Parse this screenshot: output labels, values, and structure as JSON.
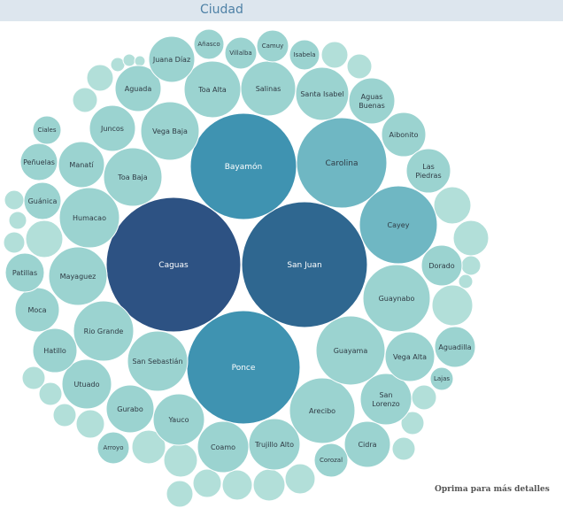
{
  "header": {
    "title": "Ciudad"
  },
  "footer": {
    "hint": "Oprima para más detalles"
  },
  "colors": {
    "header_bg": "#dde6ee",
    "header_text": "#4e81a6",
    "scale": [
      "#b2dfd9",
      "#9bd3d0",
      "#6fb7c3",
      "#3f93b1",
      "#2f6790",
      "#2d5283"
    ]
  },
  "chart_data": {
    "type": "bubble",
    "title": "Ciudad",
    "series": [
      {
        "name": "Ciudad",
        "points": [
          {
            "label": "Caguas",
            "size": 100
          },
          {
            "label": "San Juan",
            "size": 88
          },
          {
            "label": "Bayamón",
            "size": 63
          },
          {
            "label": "Ponce",
            "size": 60
          },
          {
            "label": "Carolina",
            "size": 47
          },
          {
            "label": "Cayey",
            "size": 33
          },
          {
            "label": "Arecibo",
            "size": 24
          },
          {
            "label": "Guayama",
            "size": 24
          },
          {
            "label": "Guaynabo",
            "size": 24
          },
          {
            "label": "Humacao",
            "size": 20
          },
          {
            "label": "San Sebastián",
            "size": 20
          },
          {
            "label": "Rio Grande",
            "size": 20
          },
          {
            "label": "Mayaguez",
            "size": 19
          },
          {
            "label": "Trujillo Alto",
            "size": 15
          },
          {
            "label": "Coamo",
            "size": 14
          },
          {
            "label": "Yauco",
            "size": 14
          },
          {
            "label": "San Lorenzo",
            "size": 14
          },
          {
            "label": "Toa Baja",
            "size": 19
          },
          {
            "label": "Vega Baja",
            "size": 19
          },
          {
            "label": "Toa Alta",
            "size": 18
          },
          {
            "label": "Salinas",
            "size": 16
          },
          {
            "label": "Santa Isabel",
            "size": 16
          },
          {
            "label": "Cidra",
            "size": 12
          },
          {
            "label": "Gurabo",
            "size": 13
          },
          {
            "label": "Utuado",
            "size": 14
          },
          {
            "label": "Vega Alta",
            "size": 14
          },
          {
            "label": "Juncos",
            "size": 12
          },
          {
            "label": "Aguada",
            "size": 12
          },
          {
            "label": "Juana Díaz",
            "size": 11
          },
          {
            "label": "Aguas Buenas",
            "size": 11
          },
          {
            "label": "Aibonito",
            "size": 11
          },
          {
            "label": "Las Piedras",
            "size": 11
          },
          {
            "label": "Manatí",
            "size": 11
          },
          {
            "label": "Moca",
            "size": 11
          },
          {
            "label": "Hatillo",
            "size": 10
          },
          {
            "label": "Dorado",
            "size": 9
          },
          {
            "label": "Aguadilla",
            "size": 9
          },
          {
            "label": "Patillas",
            "size": 8
          },
          {
            "label": "Guánica",
            "size": 8
          },
          {
            "label": "Peñuelas",
            "size": 8
          },
          {
            "label": "Villalba",
            "size": 6
          },
          {
            "label": "Camuy",
            "size": 6
          },
          {
            "label": "Isabela",
            "size": 6
          },
          {
            "label": "Añasco",
            "size": 6
          },
          {
            "label": "Corozal",
            "size": 6
          },
          {
            "label": "Arroyo",
            "size": 6
          },
          {
            "label": "Ciales",
            "size": 5
          },
          {
            "label": "Lajas",
            "size": 3
          }
        ]
      }
    ]
  }
}
